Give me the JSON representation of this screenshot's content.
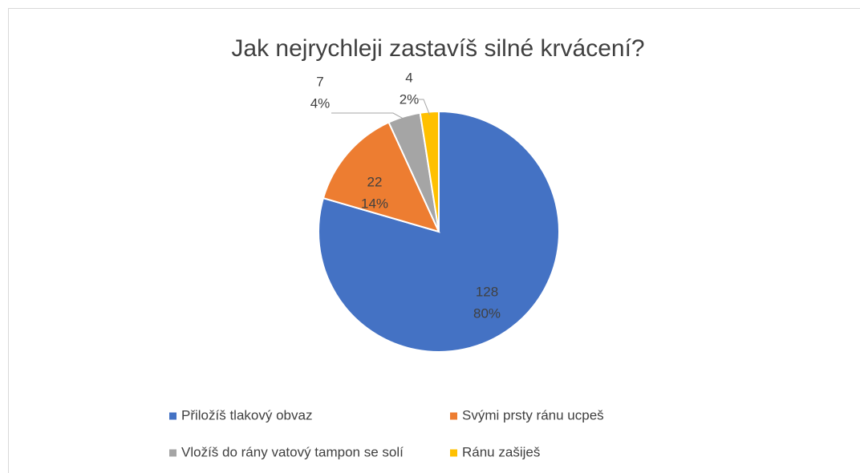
{
  "chart_data": {
    "type": "pie",
    "title": "Jak nejrychleji zastavíš silné krvácení?",
    "categories": [
      "Přiložíš tlakový obvaz",
      "Svými prsty ránu ucpeš",
      "Vložíš do rány vatový tampon se solí",
      "Ránu zašiješ"
    ],
    "values": [
      128,
      22,
      7,
      4
    ],
    "percent_labels": [
      "80%",
      "14%",
      "4%",
      "2%"
    ],
    "colors": [
      "#4472c4",
      "#ed7d31",
      "#a5a5a5",
      "#ffc000"
    ],
    "legend": "bottom"
  }
}
